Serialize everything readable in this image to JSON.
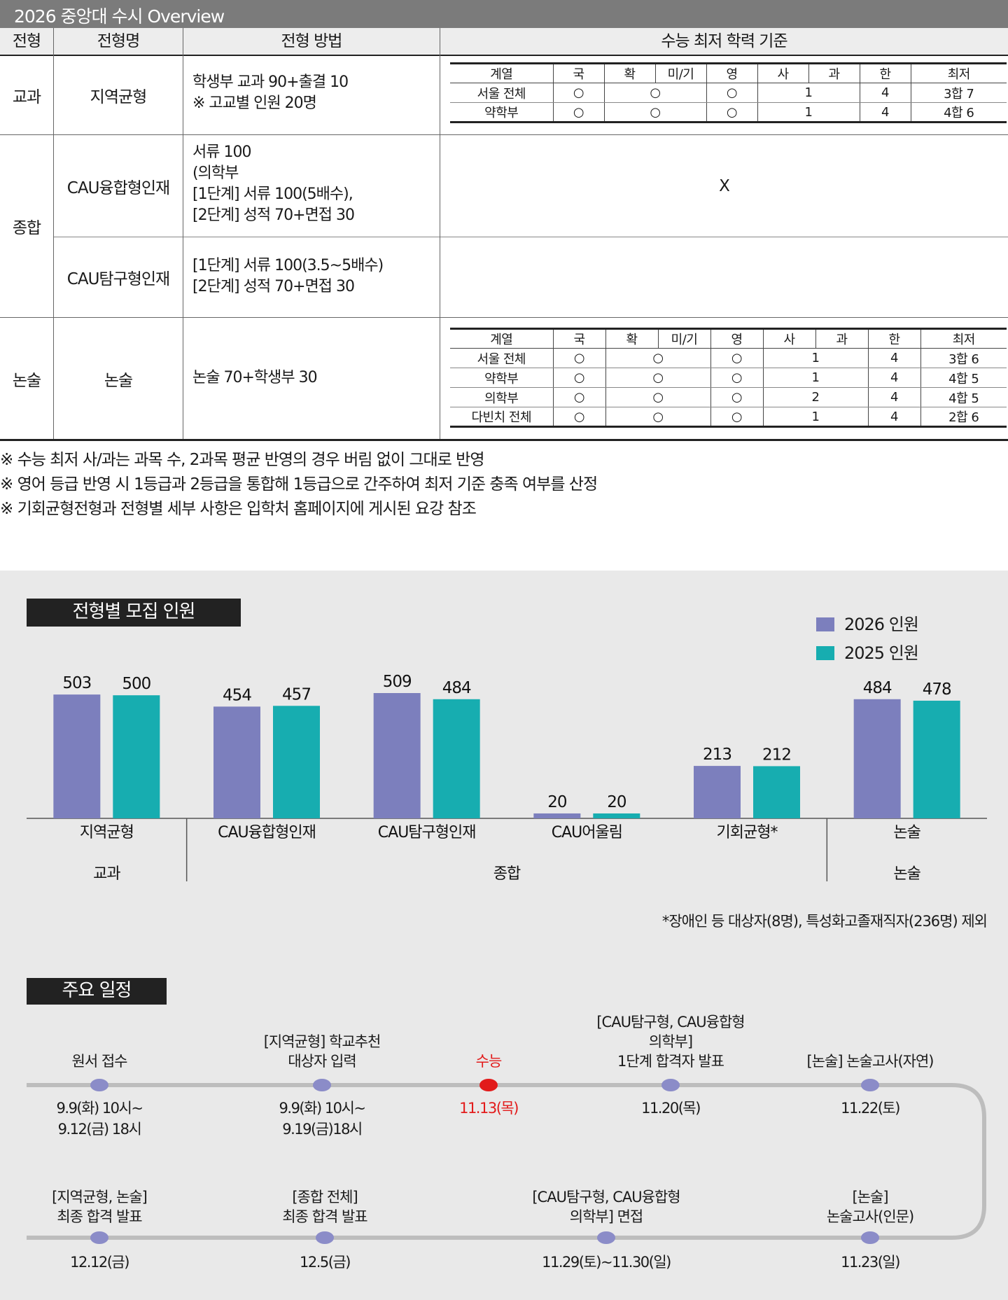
{
  "page_title": "2026 중앙대 수시 Overview",
  "table": {
    "headers": [
      "전형",
      "전형명",
      "전형 방법",
      "수능 최저 학력 기준"
    ],
    "rows": {
      "gyogwa": {
        "category": "교과",
        "name": "지역균형",
        "method_lines": [
          "학생부 교과 90+출결 10",
          "※ 고교별 인원 20명"
        ]
      },
      "jonghap": {
        "category": "종합",
        "row1": {
          "name": "CAU융합형인재",
          "method_lines": [
            "서류 100",
            "(의학부",
            "[1단계] 서류 100(5배수),",
            "[2단계] 성적 70+면접 30"
          ],
          "criteria": "X"
        },
        "row2": {
          "name": "CAU탐구형인재",
          "method_lines": [
            "[1단계] 서류 100(3.5~5배수)",
            "[2단계] 성적 70+면접 30"
          ]
        }
      },
      "nonsul": {
        "category": "논술",
        "name": "논술",
        "method_lines": [
          "논술 70+학생부 30"
        ]
      }
    },
    "criteria_headers": [
      "계열",
      "국",
      "확",
      "미/기",
      "영",
      "사",
      "과",
      "한",
      "최저"
    ],
    "criteria_gyogwa": [
      [
        "서울 전체",
        "○",
        "○",
        "○",
        "1",
        "4",
        "3합 7"
      ],
      [
        "약학부",
        "○",
        "○",
        "○",
        "1",
        "4",
        "4합 6"
      ]
    ],
    "criteria_nonsul": [
      [
        "서울 전체",
        "○",
        "○",
        "○",
        "1",
        "4",
        "3합 6"
      ],
      [
        "약학부",
        "○",
        "○",
        "○",
        "1",
        "4",
        "4합 5"
      ],
      [
        "의학부",
        "○",
        "○",
        "○",
        "2",
        "4",
        "4합 5"
      ],
      [
        "다빈치 전체",
        "○",
        "○",
        "○",
        "1",
        "4",
        "2합 6"
      ]
    ]
  },
  "notes": [
    "※ 수능 최저 사/과는 과목 수, 2과목 평균 반영의 경우 버림 없이 그대로 반영",
    "※ 영어 등급 반영 시 1등급과 2등급을 통합해 1등급으로 간주하여 최저 기준 충족 여부를 산정",
    "※ 기회균형전형과 전형별 세부 사항은 입학처 홈페이지에 게시된 요강 참조"
  ],
  "chart_section_label": "전형별 모집 인원",
  "chart_footnote": "*장애인 등 대상자(8명), 특성화고졸재직자(236명) 제외",
  "chart_data": {
    "type": "bar",
    "categories": [
      "지역균형",
      "CAU융합형인재",
      "CAU탐구형인재",
      "CAU어울림",
      "기회균형*",
      "논술"
    ],
    "groups": [
      {
        "label": "교과",
        "categories": [
          "지역균형"
        ]
      },
      {
        "label": "종합",
        "categories": [
          "CAU융합형인재",
          "CAU탐구형인재",
          "CAU어울림",
          "기회균형*"
        ]
      },
      {
        "label": "논술",
        "categories": [
          "논술"
        ]
      }
    ],
    "series": [
      {
        "name": "2026 인원",
        "color": "#7c7fbd",
        "values": [
          503,
          454,
          509,
          20,
          213,
          484
        ]
      },
      {
        "name": "2025 인원",
        "color": "#17adb0",
        "values": [
          500,
          457,
          484,
          20,
          212,
          478
        ]
      }
    ],
    "ylim": [
      0,
      560
    ],
    "legend_position": "top-right",
    "grid": false
  },
  "schedule": {
    "label": "주요 일정",
    "top_row": [
      {
        "title": [
          "원서 접수"
        ],
        "date": [
          "9.9(화) 10시~",
          "9.12(금) 18시"
        ],
        "highlight": false
      },
      {
        "title": [
          "[지역균형] 학교추천",
          "대상자 입력"
        ],
        "date": [
          "9.9(화) 10시~",
          "9.19(금)18시"
        ],
        "highlight": false
      },
      {
        "title": [
          "수능"
        ],
        "date": [
          "11.13(목)"
        ],
        "highlight": true
      },
      {
        "title": [
          "[CAU탐구형, CAU융합형",
          "의학부]",
          "1단계 합격자 발표"
        ],
        "date": [
          "11.20(목)"
        ],
        "highlight": false
      },
      {
        "title": [
          "[논술] 논술고사(자연)"
        ],
        "date": [
          "11.22(토)"
        ],
        "highlight": false
      }
    ],
    "bottom_row": [
      {
        "title": [
          "[지역균형, 논술]",
          "최종 합격 발표"
        ],
        "date": [
          "12.12(금)"
        ]
      },
      {
        "title": [
          "[종합 전체]",
          "최종 합격 발표"
        ],
        "date": [
          "12.5(금)"
        ]
      },
      {
        "title": [
          "[CAU탐구형, CAU융합형",
          "의학부] 면접"
        ],
        "date": [
          "11.29(토)~11.30(일)"
        ]
      },
      {
        "title": [
          "[논술]",
          "논술고사(인문)"
        ],
        "date": [
          "11.23(일)"
        ]
      }
    ],
    "dot_color": "#8b8cc8",
    "highlight_color": "#e21b1b",
    "line_color": "#bdbdbd"
  }
}
